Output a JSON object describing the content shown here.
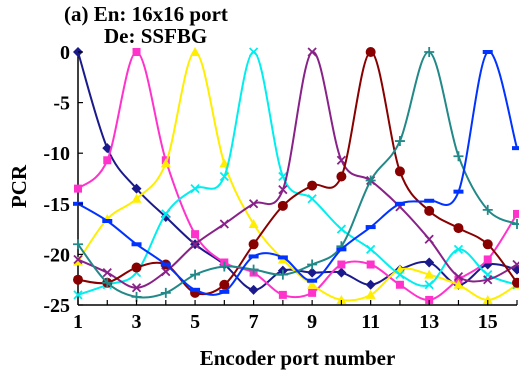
{
  "chart_data": {
    "type": "line",
    "title_lines": [
      "(a) En: 16x16 port",
      "De: SSFBG"
    ],
    "xlabel": "Encoder port number",
    "ylabel": "PCR",
    "xlim": [
      1,
      16
    ],
    "ylim": [
      -25,
      0
    ],
    "x_ticks": [
      1,
      3,
      5,
      7,
      9,
      11,
      13,
      15
    ],
    "y_ticks": [
      0,
      -5,
      -10,
      -15,
      -20,
      -25
    ],
    "grid": false,
    "legend": "none",
    "x": [
      1,
      2,
      3,
      4,
      5,
      6,
      7,
      8,
      9,
      10,
      11,
      12,
      13,
      14,
      15,
      16
    ],
    "series": [
      {
        "color": "#1a1a8c",
        "marker": "diamond",
        "values": [
          0,
          -9.5,
          -13.5,
          -16.3,
          -19,
          -21,
          -23.5,
          -21.6,
          -21.8,
          -21.8,
          -23,
          -21.5,
          -20.8,
          -23,
          -21,
          -21.5
        ]
      },
      {
        "color": "#ff33cc",
        "marker": "square",
        "values": [
          -13.5,
          -10.7,
          0,
          -10.7,
          -18,
          -20.8,
          -21.8,
          -24,
          -23.8,
          -21,
          -21,
          -23,
          -24.5,
          -22.5,
          -20.5,
          -16
        ]
      },
      {
        "color": "#ffee00",
        "marker": "triangle",
        "values": [
          -20.7,
          -16.5,
          -14.5,
          -11,
          0,
          -11,
          -17,
          -20.5,
          -23,
          -24.5,
          -24,
          -21.5,
          -22,
          -23,
          -24.5,
          -23
        ]
      },
      {
        "color": "#00eeee",
        "marker": "x",
        "values": [
          -24,
          -23,
          -21.8,
          -16,
          -13.5,
          -12.3,
          0,
          -12.3,
          -14.5,
          -17.5,
          -19.5,
          -22,
          -23,
          -19.5,
          -22,
          -23
        ]
      },
      {
        "color": "#882288",
        "marker": "x",
        "values": [
          -20.5,
          -21.8,
          -23.3,
          -21.7,
          -19,
          -17,
          -15,
          -13.6,
          0,
          -10.7,
          -12.7,
          -15.3,
          -18.5,
          -22.2,
          -22.5,
          -21
        ]
      },
      {
        "color": "#880000",
        "marker": "circle",
        "values": [
          -22.5,
          -22.8,
          -21.3,
          -21,
          -23.8,
          -23,
          -19,
          -15.2,
          -13.2,
          -12.3,
          0,
          -11.8,
          -15.7,
          -17.4,
          -19,
          -22.8
        ]
      },
      {
        "color": "#228888",
        "marker": "plus",
        "values": [
          -19,
          -22.8,
          -24.2,
          -23.8,
          -22,
          -21.2,
          -21.5,
          -22,
          -21,
          -19.2,
          -12.7,
          -8.8,
          0,
          -10.3,
          -15.6,
          -17
        ]
      },
      {
        "color": "#0033ff",
        "marker": "dash",
        "values": [
          -15,
          -16.7,
          -19,
          -21,
          -23.5,
          -23.7,
          -20.2,
          -20.3,
          -22.6,
          -19.5,
          -17.3,
          -15,
          -14.7,
          -13.8,
          0,
          -9.5
        ]
      }
    ]
  }
}
